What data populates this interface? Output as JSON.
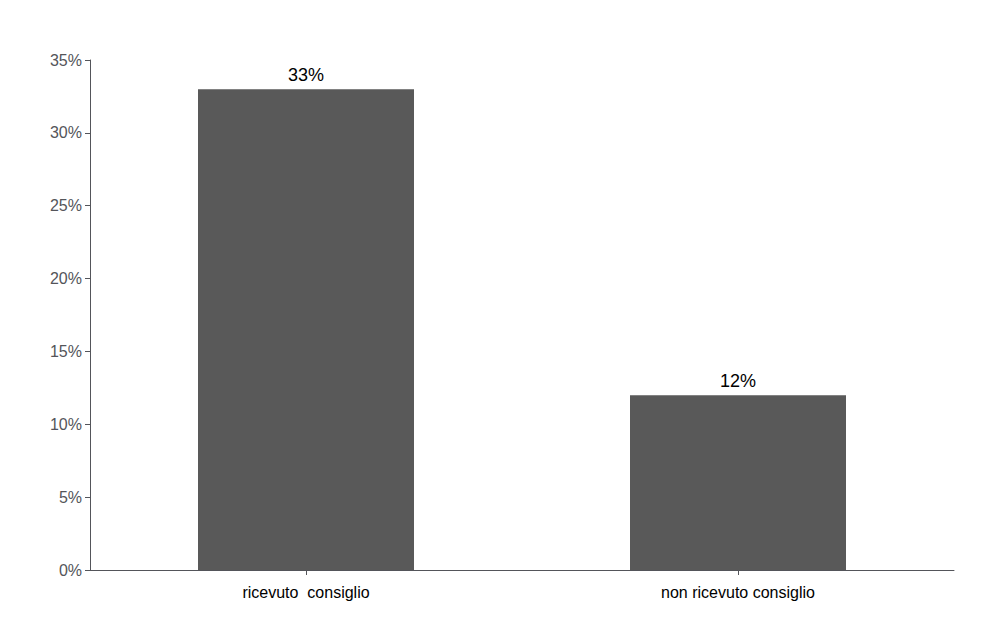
{
  "chart_data": {
    "type": "bar",
    "categories": [
      "ricevuto  consiglio",
      "non ricevuto consiglio"
    ],
    "values": [
      33,
      12
    ],
    "value_labels": [
      "33%",
      "12%"
    ],
    "color": "#595959",
    "ylim": [
      0,
      35
    ],
    "yticks": [
      {
        "value": 0,
        "label": "0%"
      },
      {
        "value": 5,
        "label": "5%"
      },
      {
        "value": 10,
        "label": "10%"
      },
      {
        "value": 15,
        "label": "15%"
      },
      {
        "value": 20,
        "label": "20%"
      },
      {
        "value": 25,
        "label": "25%"
      },
      {
        "value": 30,
        "label": "30%"
      },
      {
        "value": 35,
        "label": "35%"
      }
    ],
    "grid": false,
    "data_labels": true
  }
}
